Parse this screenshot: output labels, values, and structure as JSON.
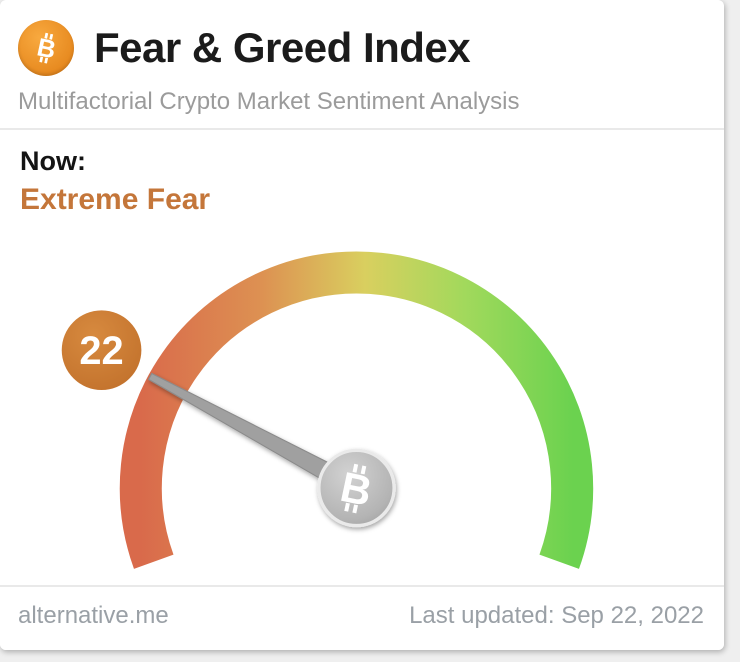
{
  "header": {
    "title": "Fear & Greed Index",
    "subtitle": "Multifactorial Crypto Market Sentiment Analysis",
    "bitcoin_letter": "B",
    "icon_color": "#ef8f1c"
  },
  "status": {
    "now_label": "Now:",
    "sentiment": "Extreme Fear",
    "sentiment_color": "#c4763a"
  },
  "gauge": {
    "value": 22,
    "min": 0,
    "max": 100,
    "badge_color": "#c9772e",
    "needle_color": "#a0a0a0",
    "coin_letter": "B",
    "gradient": [
      "#d96a4b",
      "#dd9152",
      "#d9cf5f",
      "#a2d95c",
      "#6bd24f"
    ]
  },
  "footer": {
    "source": "alternative.me",
    "last_updated": "Last updated: Sep 22, 2022"
  },
  "chart_data": {
    "type": "gauge",
    "title": "Fear & Greed Index",
    "subtitle": "Multifactorial Crypto Market Sentiment Analysis",
    "value": 22,
    "range": [
      0,
      100
    ],
    "classification": "Extreme Fear",
    "scale_colors_low_to_high": [
      "#d96a4b",
      "#dd9152",
      "#d9cf5f",
      "#a2d95c",
      "#6bd24f"
    ],
    "scale_meaning": "red = extreme fear, green = extreme greed",
    "last_updated": "Sep 22, 2022",
    "source": "alternative.me"
  }
}
